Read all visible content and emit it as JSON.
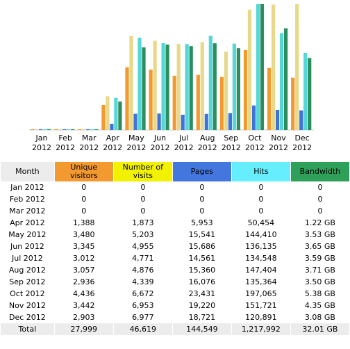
{
  "chart_data": {
    "type": "bar",
    "categories": [
      "Jan 2012",
      "Feb 2012",
      "Mar 2012",
      "Apr 2012",
      "May 2012",
      "Jun 2012",
      "Jul 2012",
      "Aug 2012",
      "Sep 2012",
      "Oct 2012",
      "Nov 2012",
      "Dec 2012"
    ],
    "x_tick_labels": [
      [
        "Jan",
        "2012"
      ],
      [
        "Feb",
        "2012"
      ],
      [
        "Mar",
        "2012"
      ],
      [
        "Apr",
        "2012"
      ],
      [
        "May",
        "2012"
      ],
      [
        "Jun",
        "2012"
      ],
      [
        "Jul",
        "2012"
      ],
      [
        "Aug",
        "2012"
      ],
      [
        "Sep",
        "2012"
      ],
      [
        "Oct",
        "2012"
      ],
      [
        "Nov",
        "2012"
      ],
      [
        "Dec",
        "2012"
      ]
    ],
    "series": [
      {
        "name": "Unique visitors",
        "color": "#f29a30",
        "values": [
          0,
          0,
          0,
          1388,
          3480,
          3345,
          3012,
          3057,
          2936,
          4436,
          3442,
          2903
        ]
      },
      {
        "name": "Number of visits",
        "color": "#e8d98a",
        "values": [
          0,
          0,
          0,
          1873,
          5203,
          4955,
          4771,
          4876,
          4339,
          6672,
          6953,
          6977
        ]
      },
      {
        "name": "Pages",
        "color": "#3f73d9",
        "values": [
          0,
          0,
          0,
          5953,
          15541,
          15686,
          14561,
          15360,
          16076,
          23431,
          19220,
          18721
        ]
      },
      {
        "name": "Hits",
        "color": "#56d6d6",
        "values": [
          0,
          0,
          0,
          50454,
          144410,
          136135,
          134548,
          147404,
          135364,
          197065,
          151721,
          120891
        ]
      },
      {
        "name": "Bandwidth",
        "color": "#2a8e5e",
        "values": [
          0,
          0,
          0,
          1.22,
          3.53,
          3.65,
          3.59,
          3.71,
          3.5,
          5.38,
          4.35,
          3.08
        ]
      }
    ],
    "grid": false
  },
  "table": {
    "headers": {
      "month": "Month",
      "unique": [
        "Unique",
        "visitors"
      ],
      "visits": [
        "Number of",
        "visits"
      ],
      "pages": "Pages",
      "hits": "Hits",
      "bandwidth": "Bandwidth"
    },
    "header_colors": {
      "unique": "#f29a30",
      "visits": "#f2f200",
      "pages": "#4477dd",
      "hits": "#66eeff",
      "bandwidth": "#2ea05a"
    },
    "rows": [
      {
        "month": "Jan 2012",
        "unique": "0",
        "visits": "0",
        "pages": "0",
        "hits": "0",
        "bandwidth": "0"
      },
      {
        "month": "Feb 2012",
        "unique": "0",
        "visits": "0",
        "pages": "0",
        "hits": "0",
        "bandwidth": "0"
      },
      {
        "month": "Mar 2012",
        "unique": "0",
        "visits": "0",
        "pages": "0",
        "hits": "0",
        "bandwidth": "0"
      },
      {
        "month": "Apr 2012",
        "unique": "1,388",
        "visits": "1,873",
        "pages": "5,953",
        "hits": "50,454",
        "bandwidth": "1.22 GB"
      },
      {
        "month": "May 2012",
        "unique": "3,480",
        "visits": "5,203",
        "pages": "15,541",
        "hits": "144,410",
        "bandwidth": "3.53 GB"
      },
      {
        "month": "Jun 2012",
        "unique": "3,345",
        "visits": "4,955",
        "pages": "15,686",
        "hits": "136,135",
        "bandwidth": "3.65 GB"
      },
      {
        "month": "Jul 2012",
        "unique": "3,012",
        "visits": "4,771",
        "pages": "14,561",
        "hits": "134,548",
        "bandwidth": "3.59 GB"
      },
      {
        "month": "Aug 2012",
        "unique": "3,057",
        "visits": "4,876",
        "pages": "15,360",
        "hits": "147,404",
        "bandwidth": "3.71 GB"
      },
      {
        "month": "Sep 2012",
        "unique": "2,936",
        "visits": "4,339",
        "pages": "16,076",
        "hits": "135,364",
        "bandwidth": "3.50 GB"
      },
      {
        "month": "Oct 2012",
        "unique": "4,436",
        "visits": "6,672",
        "pages": "23,431",
        "hits": "197,065",
        "bandwidth": "5.38 GB"
      },
      {
        "month": "Nov 2012",
        "unique": "3,442",
        "visits": "6,953",
        "pages": "19,220",
        "hits": "151,721",
        "bandwidth": "4.35 GB"
      },
      {
        "month": "Dec 2012",
        "unique": "2,903",
        "visits": "6,977",
        "pages": "18,721",
        "hits": "120,891",
        "bandwidth": "3.08 GB"
      }
    ],
    "total": {
      "month": "Total",
      "unique": "27,999",
      "visits": "46,619",
      "pages": "144,549",
      "hits": "1,217,992",
      "bandwidth": "32.01 GB"
    }
  }
}
